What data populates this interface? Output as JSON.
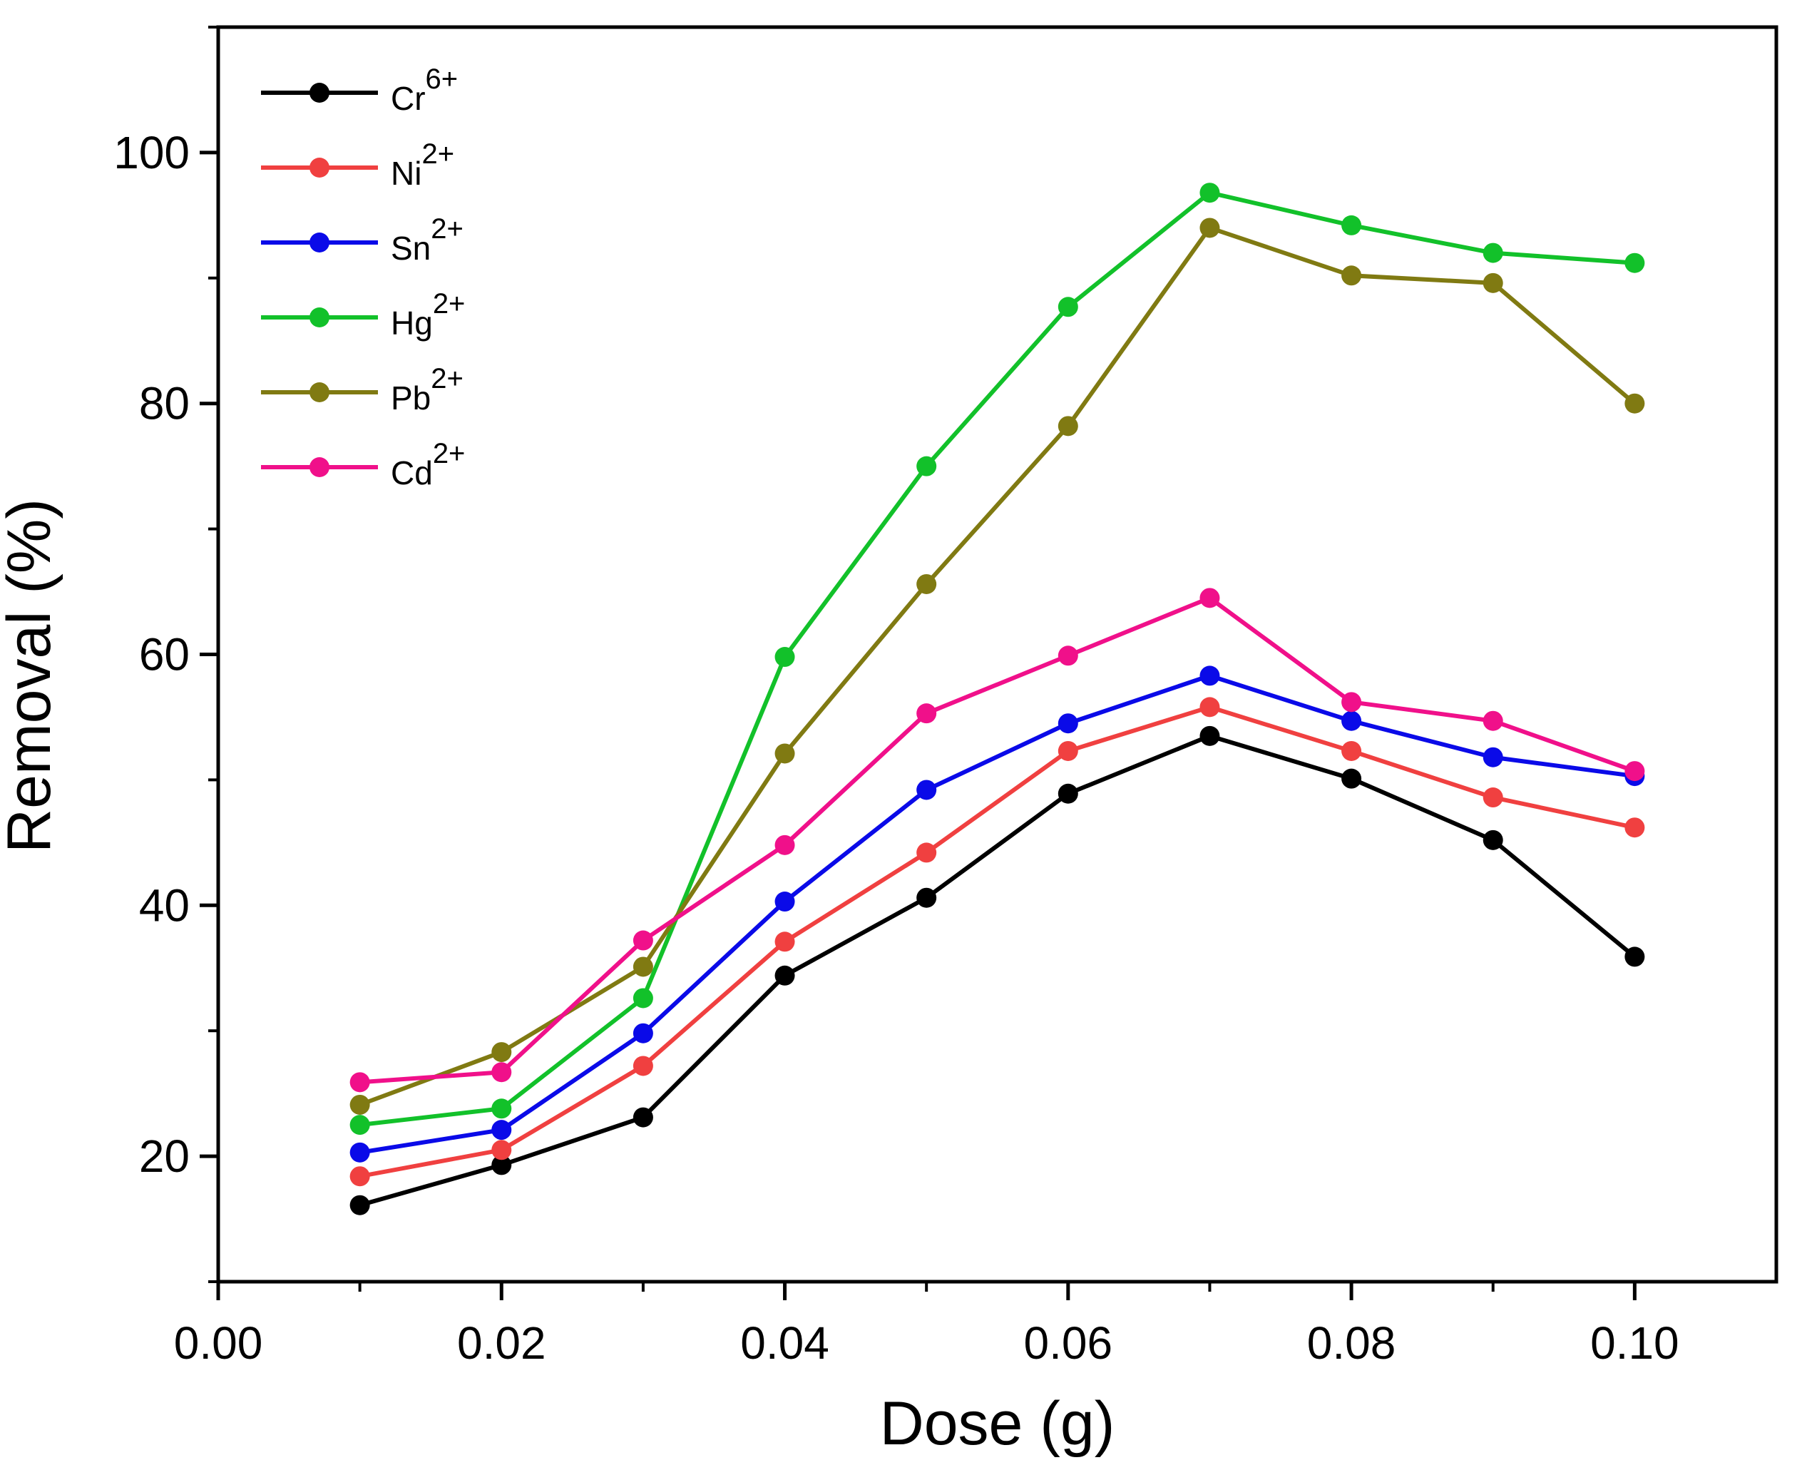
{
  "chart_data": {
    "type": "line",
    "xlabel": "Dose (g)",
    "ylabel": "Removal (%)",
    "xlim": [
      0.0,
      0.11
    ],
    "ylim": [
      10,
      110
    ],
    "x_ticks": [
      0.0,
      0.02,
      0.04,
      0.06,
      0.08,
      0.1
    ],
    "x_tick_labels": [
      "0.00",
      "0.02",
      "0.04",
      "0.06",
      "0.08",
      "0.10"
    ],
    "y_ticks": [
      20,
      40,
      60,
      80,
      100
    ],
    "y_tick_labels": [
      "20",
      "40",
      "60",
      "80",
      "100"
    ],
    "grid": false,
    "legend_position": "top-left",
    "x": [
      0.01,
      0.02,
      0.03,
      0.04,
      0.05,
      0.06,
      0.07,
      0.08,
      0.09,
      0.1
    ],
    "series": [
      {
        "name": "Cr6+",
        "base": "Cr",
        "charge": "6+",
        "color": "#000000",
        "values": [
          16.1,
          19.3,
          23.1,
          34.4,
          40.6,
          48.9,
          53.5,
          50.1,
          45.2,
          35.9
        ]
      },
      {
        "name": "Ni2+",
        "base": "Ni",
        "charge": "2+",
        "color": "#f04040",
        "values": [
          18.4,
          20.5,
          27.2,
          37.1,
          44.2,
          52.3,
          55.8,
          52.3,
          48.6,
          46.2
        ]
      },
      {
        "name": "Sn2+",
        "base": "Sn",
        "charge": "2+",
        "color": "#0a0ae8",
        "values": [
          20.3,
          22.1,
          29.8,
          40.3,
          49.2,
          54.5,
          58.3,
          54.7,
          51.8,
          50.3
        ]
      },
      {
        "name": "Hg2+",
        "base": "Hg",
        "charge": "2+",
        "color": "#12c12a",
        "values": [
          22.5,
          23.8,
          32.6,
          59.8,
          75.0,
          87.7,
          96.8,
          94.2,
          92.0,
          91.2
        ]
      },
      {
        "name": "Pb2+",
        "base": "Pb",
        "charge": "2+",
        "color": "#807a12",
        "values": [
          24.1,
          28.3,
          35.1,
          52.1,
          65.6,
          78.2,
          94.0,
          90.2,
          89.6,
          80.0
        ]
      },
      {
        "name": "Cd2+",
        "base": "Cd",
        "charge": "2+",
        "color": "#f0108a",
        "values": [
          25.9,
          26.7,
          37.2,
          44.8,
          55.3,
          59.9,
          64.5,
          56.2,
          54.7,
          50.7
        ]
      }
    ]
  }
}
